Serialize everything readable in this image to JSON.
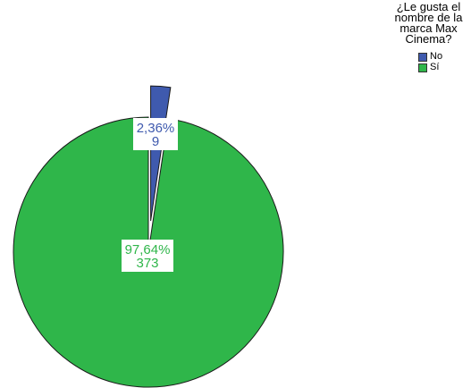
{
  "chart_data": {
    "type": "pie",
    "legend_title": "¿Le gusta el\nnombre de la\nmarca Max\nCinema?",
    "legend_placement": "top-right",
    "series": [
      {
        "name": "No",
        "value": 9,
        "percent_label": "2,36%",
        "count_label": "9",
        "color": "#3F5AAE",
        "exploded": true
      },
      {
        "name": "Sí",
        "value": 373,
        "percent_label": "97,64%",
        "count_label": "373",
        "color": "#2FB64A",
        "exploded": false
      }
    ]
  }
}
